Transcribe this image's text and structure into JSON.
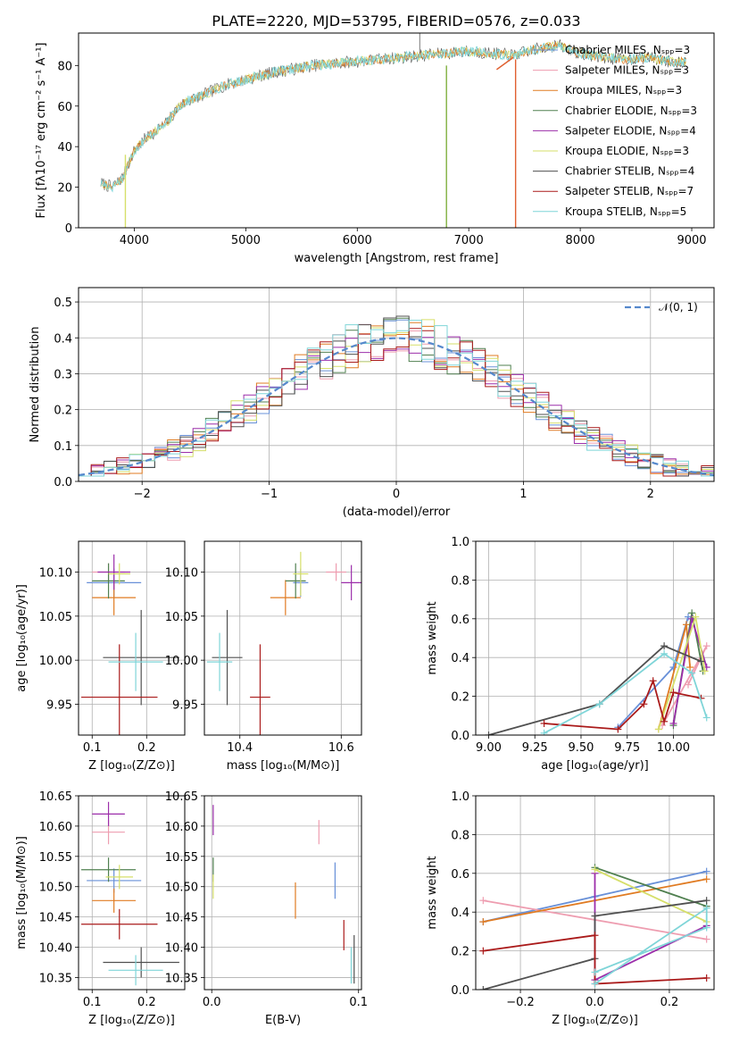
{
  "figure": {
    "title": "PLATE=2220, MJD=53795, FIBERID=0576, z=0.033"
  },
  "colors": {
    "model_colors": [
      "#6890d8",
      "#ee9db0",
      "#e07b22",
      "#508050",
      "#9c2eaa",
      "#d6df6a",
      "#505050",
      "#aa1a1a",
      "#7fd5d8"
    ],
    "spectrum": "#7fd5d8",
    "spectrum2": "#555555",
    "red_line": "#e06030",
    "green_line": "#80b040",
    "normal_curve": "#5588cc"
  },
  "chart_data": [
    {
      "id": "spectrum",
      "type": "line",
      "title": "PLATE=2220, MJD=53795, FIBERID=0576, z=0.033",
      "xlabel": "wavelength [Angstrom, rest frame]",
      "ylabel": "Flux [fλ10⁻¹⁷ erg cm⁻² s⁻¹ A⁻¹]",
      "xlim": [
        3500,
        9200
      ],
      "ylim": [
        0,
        96
      ],
      "xticks": [
        4000,
        5000,
        6000,
        7000,
        8000,
        9000
      ],
      "yticks": [
        0,
        20,
        40,
        60,
        80
      ],
      "grid": false,
      "legend_position": "right",
      "legend": [
        "Chabrier MILES, Nₛₚₚ=3",
        "Salpeter MILES, Nₛₚₚ=3",
        "Kroupa MILES, Nₛₚₚ=3",
        "Chabrier ELODIE, Nₛₚₚ=3",
        "Salpeter ELODIE, Nₛₚₚ=4",
        "Kroupa ELODIE, Nₛₚₚ=3",
        "Chabrier STELIB, Nₛₚₚ=4",
        "Salpeter STELIB, Nₛₚₚ=7",
        "Kroupa STELIB, Nₛₚₚ=5"
      ],
      "continuum": {
        "x": [
          3700,
          3800,
          3900,
          3950,
          4000,
          4100,
          4200,
          4300,
          4400,
          4500,
          4600,
          4800,
          5000,
          5200,
          5400,
          5600,
          5800,
          6000,
          6200,
          6400,
          6600,
          6800,
          7000,
          7200,
          7400,
          7600,
          7800,
          8000,
          8200,
          8400,
          8600,
          8800,
          8950
        ],
        "y": [
          22,
          20,
          25,
          32,
          38,
          44,
          48,
          52,
          60,
          63,
          65,
          70,
          73,
          76,
          78,
          80,
          81,
          82,
          83,
          84,
          85,
          86,
          87,
          86,
          85,
          88,
          90,
          86,
          84,
          83,
          84,
          82,
          82
        ]
      },
      "drops": [
        {
          "x": 3920,
          "y_from": 36,
          "y_to": 0
        },
        {
          "x": 6800,
          "y_from": 80,
          "y_to": 0
        },
        {
          "x": 7420,
          "y_from": 83,
          "y_to": 0
        }
      ],
      "spike": {
        "x": 6560,
        "y": 96
      }
    },
    {
      "id": "residuals",
      "type": "histogram",
      "xlabel": "(data-model)/error",
      "ylabel": "Normed distribution",
      "xlim": [
        -2.5,
        2.5
      ],
      "ylim": [
        0,
        0.54
      ],
      "xticks": [
        -2,
        -1,
        0,
        1,
        2
      ],
      "yticks": [
        0.0,
        0.1,
        0.2,
        0.3,
        0.4,
        0.5
      ],
      "grid": true,
      "legend_position": "top-right",
      "legend": [
        "𝒩(0, 1)"
      ],
      "bin_width": 0.1,
      "bin_start": -2.5,
      "normal_mean": 0,
      "normal_sigma": 1
    },
    {
      "id": "age-vs-Z",
      "type": "scatter",
      "xlabel": "Z [log₁₀(Z/Z⊙)]",
      "ylabel": "age  [log₁₀(age/yr)]",
      "xlim": [
        0.075,
        0.27
      ],
      "ylim": [
        9.915,
        10.135
      ],
      "xticks": [
        0.1,
        0.2
      ],
      "yticks": [
        9.95,
        10.0,
        10.05,
        10.1
      ],
      "grid": true,
      "points": [
        {
          "x": 0.14,
          "y": 10.088,
          "xerr": 0.05,
          "yerr": 0.016
        },
        {
          "x": 0.13,
          "y": 10.1,
          "xerr": 0.03,
          "yerr": 0.01
        },
        {
          "x": 0.14,
          "y": 10.071,
          "xerr": 0.04,
          "yerr": 0.02
        },
        {
          "x": 0.13,
          "y": 10.09,
          "xerr": 0.03,
          "yerr": 0.02
        },
        {
          "x": 0.14,
          "y": 10.1,
          "xerr": 0.03,
          "yerr": 0.02
        },
        {
          "x": 0.15,
          "y": 10.098,
          "xerr": 0.02,
          "yerr": 0.012
        },
        {
          "x": 0.19,
          "y": 10.003,
          "xerr": 0.07,
          "yerr": 0.054
        },
        {
          "x": 0.15,
          "y": 9.958,
          "xerr": 0.07,
          "yerr": 0.06
        },
        {
          "x": 0.18,
          "y": 9.998,
          "xerr": 0.05,
          "yerr": 0.033
        }
      ]
    },
    {
      "id": "age-vs-mass",
      "type": "scatter",
      "xlabel": "mass [log₁₀(M/M⊙)]",
      "ylabel": "",
      "xlim": [
        10.33,
        10.64
      ],
      "ylim": [
        9.915,
        10.135
      ],
      "xticks": [
        10.4,
        10.6
      ],
      "yticks": [
        9.95,
        10.0,
        10.05,
        10.1
      ],
      "grid": true,
      "points": [
        {
          "x": 10.52,
          "y": 10.088,
          "xerr": 0.015,
          "yerr": 0.016
        },
        {
          "x": 10.59,
          "y": 10.1,
          "xerr": 0.02,
          "yerr": 0.01
        },
        {
          "x": 10.49,
          "y": 10.071,
          "xerr": 0.03,
          "yerr": 0.02
        },
        {
          "x": 10.51,
          "y": 10.09,
          "xerr": 0.02,
          "yerr": 0.02
        },
        {
          "x": 10.62,
          "y": 10.088,
          "xerr": 0.02,
          "yerr": 0.02
        },
        {
          "x": 10.52,
          "y": 10.098,
          "xerr": 0.015,
          "yerr": 0.025
        },
        {
          "x": 10.375,
          "y": 10.003,
          "xerr": 0.03,
          "yerr": 0.054
        },
        {
          "x": 10.44,
          "y": 9.958,
          "xerr": 0.02,
          "yerr": 0.06
        },
        {
          "x": 10.36,
          "y": 9.998,
          "xerr": 0.025,
          "yerr": 0.033
        }
      ]
    },
    {
      "id": "mass-weight-vs-age",
      "type": "line",
      "xlabel": "age  [log₁₀(age/yr)]",
      "ylabel": "mass weight",
      "xlim": [
        8.93,
        10.22
      ],
      "ylim": [
        0,
        1.0
      ],
      "xticks": [
        9.0,
        9.25,
        9.5,
        9.75,
        10.0
      ],
      "yticks": [
        0.0,
        0.2,
        0.4,
        0.6,
        0.8,
        1.0
      ],
      "grid": true,
      "series": [
        {
          "x": [
            9.7,
            10.0,
            10.08
          ],
          "y": [
            0.04,
            0.35,
            0.61
          ]
        },
        {
          "x": [
            9.94,
            10.18,
            10.08
          ],
          "y": [
            0.05,
            0.46,
            0.26
          ]
        },
        {
          "x": [
            9.92,
            10.07,
            10.09
          ],
          "y": [
            0.03,
            0.57,
            0.35
          ]
        },
        {
          "x": [
            10.0,
            10.1,
            10.16
          ],
          "y": [
            0.05,
            0.63,
            0.33
          ]
        },
        {
          "x": [
            10.0,
            10.1,
            10.18
          ],
          "y": [
            0.06,
            0.6,
            0.35
          ]
        },
        {
          "x": [
            9.92,
            10.12,
            10.17
          ],
          "y": [
            0.03,
            0.61,
            0.33
          ]
        },
        {
          "x": [
            9.0,
            9.6,
            9.95,
            10.15
          ],
          "y": [
            0.0,
            0.16,
            0.46,
            0.38
          ]
        },
        {
          "x": [
            9.3,
            9.7,
            9.84,
            9.89,
            9.95,
            10.0,
            10.15
          ],
          "y": [
            0.06,
            0.03,
            0.16,
            0.28,
            0.07,
            0.22,
            0.19
          ]
        },
        {
          "x": [
            9.3,
            9.6,
            9.95,
            10.1,
            10.18
          ],
          "y": [
            0.01,
            0.16,
            0.42,
            0.32,
            0.09
          ]
        }
      ]
    },
    {
      "id": "mass-vs-Z",
      "type": "scatter",
      "xlabel": "Z [log₁₀(Z/Z⊙)]",
      "ylabel": "mass [log₁₀(M/M⊙)]",
      "xlim": [
        0.075,
        0.27
      ],
      "ylim": [
        10.33,
        10.65
      ],
      "xticks": [
        0.1,
        0.2
      ],
      "yticks": [
        10.35,
        10.4,
        10.45,
        10.5,
        10.55,
        10.6,
        10.65
      ],
      "grid": true,
      "points": [
        {
          "x": 0.14,
          "y": 10.51,
          "xerr": 0.05,
          "yerr": 0.02
        },
        {
          "x": 0.13,
          "y": 10.59,
          "xerr": 0.03,
          "yerr": 0.02
        },
        {
          "x": 0.14,
          "y": 10.477,
          "xerr": 0.04,
          "yerr": 0.02
        },
        {
          "x": 0.13,
          "y": 10.528,
          "xerr": 0.05,
          "yerr": 0.02
        },
        {
          "x": 0.13,
          "y": 10.62,
          "xerr": 0.03,
          "yerr": 0.02
        },
        {
          "x": 0.15,
          "y": 10.516,
          "xerr": 0.025,
          "yerr": 0.02
        },
        {
          "x": 0.19,
          "y": 10.375,
          "xerr": 0.07,
          "yerr": 0.025
        },
        {
          "x": 0.15,
          "y": 10.438,
          "xerr": 0.07,
          "yerr": 0.025
        },
        {
          "x": 0.18,
          "y": 10.362,
          "xerr": 0.05,
          "yerr": 0.025
        }
      ]
    },
    {
      "id": "mass-vs-ebv",
      "type": "scatter",
      "xlabel": "E(B-V)",
      "ylabel": "",
      "xlim": [
        -0.005,
        0.102
      ],
      "ylim": [
        10.33,
        10.65
      ],
      "xticks": [
        0.0,
        0.1
      ],
      "yticks": [
        10.35,
        10.4,
        10.45,
        10.5,
        10.55,
        10.6,
        10.65
      ],
      "grid": true,
      "points": [
        {
          "x": 0.084,
          "y": 10.51,
          "xerr": 0,
          "yerr": 0.03
        },
        {
          "x": 0.073,
          "y": 10.59,
          "xerr": 0,
          "yerr": 0.02
        },
        {
          "x": 0.057,
          "y": 10.477,
          "xerr": 0,
          "yerr": 0.03
        },
        {
          "x": 0.001,
          "y": 10.528,
          "xerr": 0,
          "yerr": 0.02
        },
        {
          "x": 0.001,
          "y": 10.61,
          "xerr": 0,
          "yerr": 0.025
        },
        {
          "x": 0.001,
          "y": 10.5,
          "xerr": 0,
          "yerr": 0.02
        },
        {
          "x": 0.097,
          "y": 10.38,
          "xerr": 0,
          "yerr": 0.04
        },
        {
          "x": 0.09,
          "y": 10.42,
          "xerr": 0,
          "yerr": 0.025
        },
        {
          "x": 0.095,
          "y": 10.37,
          "xerr": 0,
          "yerr": 0.03
        }
      ]
    },
    {
      "id": "mass-weight-vs-Z",
      "type": "line",
      "xlabel": "Z [log₁₀(Z/Z⊙)]",
      "ylabel": "mass weight",
      "xlim": [
        -0.32,
        0.32
      ],
      "ylim": [
        0,
        1.0
      ],
      "xticks": [
        -0.2,
        0.0,
        0.2
      ],
      "yticks": [
        0.0,
        0.2,
        0.4,
        0.6,
        0.8,
        1.0
      ],
      "grid": true,
      "series": [
        {
          "x": [
            -0.3,
            0.0,
            0.3
          ],
          "y": [
            0.35,
            0.48,
            0.61
          ]
        },
        {
          "x": [
            -0.3,
            0.3
          ],
          "y": [
            0.46,
            0.26
          ]
        },
        {
          "x": [
            -0.3,
            0.3
          ],
          "y": [
            0.35,
            0.57
          ]
        },
        {
          "x": [
            0.0,
            0.3
          ],
          "y": [
            0.63,
            0.43
          ]
        },
        {
          "x": [
            0.0,
            0.0,
            0.3
          ],
          "y": [
            0.6,
            0.05,
            0.33
          ]
        },
        {
          "x": [
            0.0,
            0.3
          ],
          "y": [
            0.62,
            0.35
          ]
        },
        {
          "x": [
            -0.3,
            0.0,
            0.0,
            0.3
          ],
          "y": [
            0.0,
            0.16,
            0.38,
            0.46
          ]
        },
        {
          "x": [
            -0.3,
            0.0,
            0.0,
            0.3
          ],
          "y": [
            0.2,
            0.28,
            0.03,
            0.06
          ]
        },
        {
          "x": [
            0.0,
            0.3,
            0.3,
            0.0
          ],
          "y": [
            0.03,
            0.42,
            0.32,
            0.09
          ]
        }
      ]
    }
  ]
}
